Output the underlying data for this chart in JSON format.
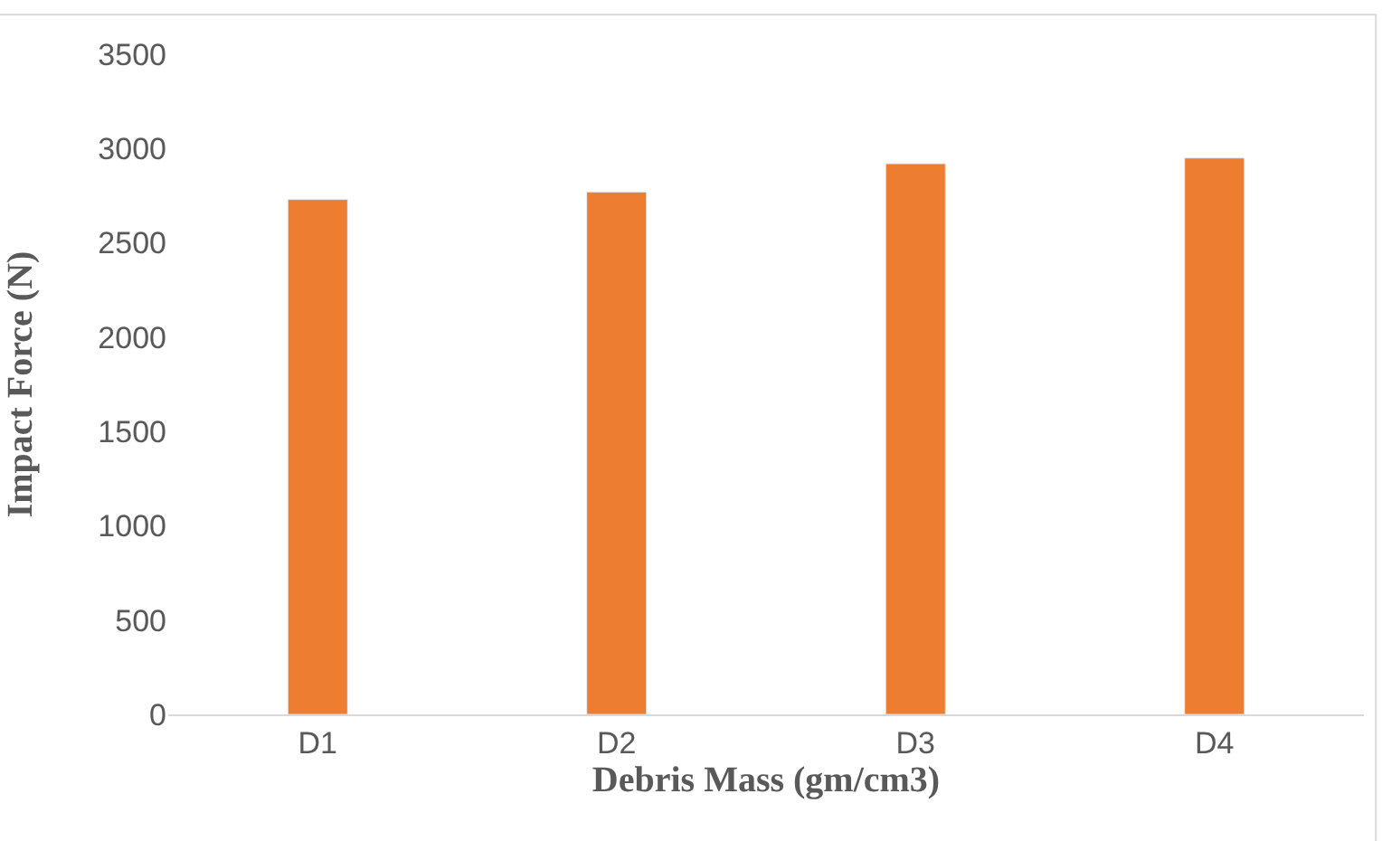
{
  "chart_data": {
    "type": "bar",
    "xlabel": "Debris Mass (gm/cm3)",
    "ylabel": "Impact Force (N)",
    "categories": [
      "D1",
      "D2",
      "D3",
      "D4"
    ],
    "series": [
      {
        "color": "#ed7d31",
        "values": [
          2730,
          2770,
          2920,
          2950
        ]
      }
    ],
    "ylim": [
      0,
      3500
    ],
    "yticks": [
      0,
      500,
      1000,
      1500,
      2000,
      2500,
      3000,
      3500
    ],
    "grid": false,
    "legend": false
  }
}
